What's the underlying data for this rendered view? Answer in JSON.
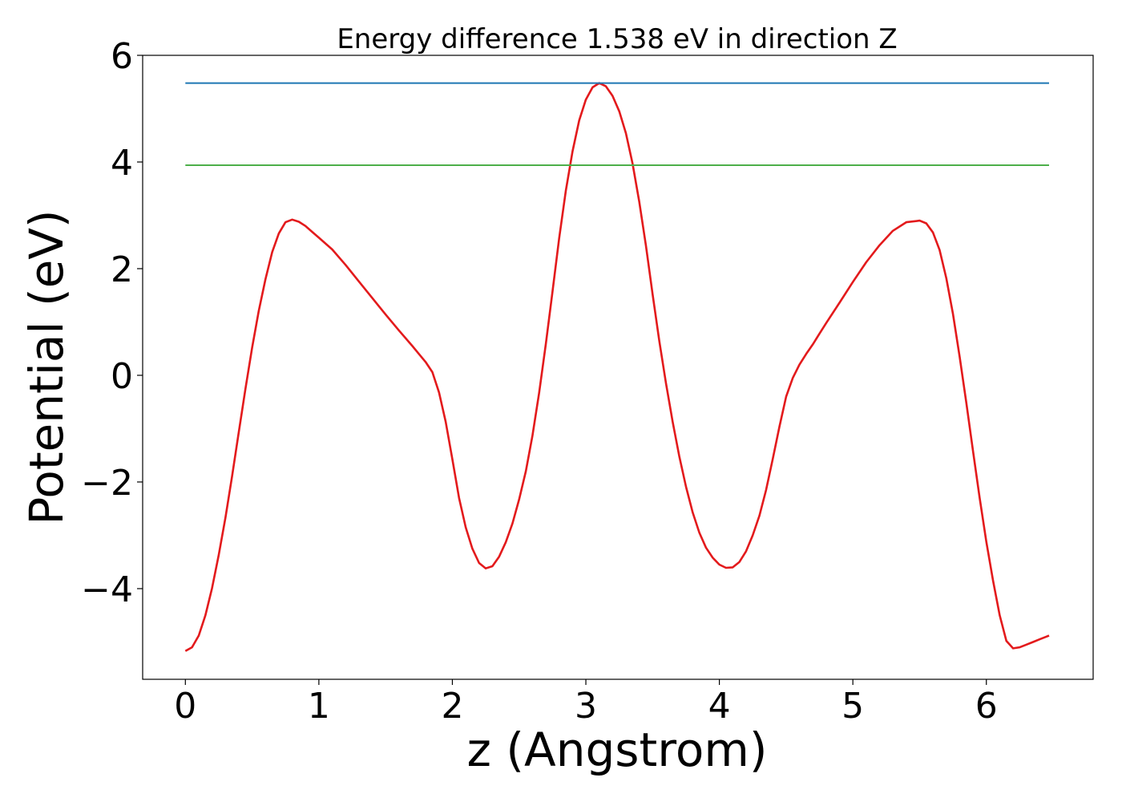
{
  "chart_data": {
    "type": "line",
    "title": "Energy difference 1.538 eV in direction Z",
    "xlabel": "z (Angstrom)",
    "ylabel": "Potential (eV)",
    "xlim": [
      -0.32,
      6.8
    ],
    "ylim": [
      -5.7,
      6.0
    ],
    "xticks": [
      0,
      1,
      2,
      3,
      4,
      5,
      6
    ],
    "yticks": [
      -4,
      -2,
      0,
      2,
      4,
      6
    ],
    "xtick_labels": [
      "0",
      "1",
      "2",
      "3",
      "4",
      "5",
      "6"
    ],
    "ytick_labels": [
      "−4",
      "−2",
      "0",
      "2",
      "4",
      "6"
    ],
    "grid": false,
    "series": [
      {
        "role": "potential-curve",
        "color": "#e31a1c",
        "x": [
          0.0,
          0.05,
          0.1,
          0.15,
          0.2,
          0.25,
          0.3,
          0.35,
          0.4,
          0.45,
          0.5,
          0.55,
          0.6,
          0.65,
          0.7,
          0.75,
          0.8,
          0.85,
          0.9,
          0.95,
          1.0,
          1.1,
          1.2,
          1.3,
          1.4,
          1.5,
          1.6,
          1.7,
          1.75,
          1.8,
          1.85,
          1.9,
          1.95,
          2.0,
          2.05,
          2.1,
          2.15,
          2.2,
          2.25,
          2.3,
          2.35,
          2.4,
          2.45,
          2.5,
          2.55,
          2.6,
          2.65,
          2.7,
          2.75,
          2.8,
          2.85,
          2.9,
          2.95,
          3.0,
          3.05,
          3.1,
          3.15,
          3.2,
          3.25,
          3.3,
          3.35,
          3.4,
          3.45,
          3.5,
          3.55,
          3.6,
          3.65,
          3.7,
          3.75,
          3.8,
          3.85,
          3.9,
          3.95,
          4.0,
          4.05,
          4.1,
          4.15,
          4.2,
          4.25,
          4.3,
          4.35,
          4.4,
          4.45,
          4.5,
          4.55,
          4.6,
          4.65,
          4.7,
          4.75,
          4.8,
          4.9,
          5.0,
          5.1,
          5.2,
          5.3,
          5.4,
          5.5,
          5.55,
          5.6,
          5.65,
          5.7,
          5.75,
          5.8,
          5.85,
          5.9,
          5.95,
          6.0,
          6.05,
          6.1,
          6.15,
          6.2,
          6.25,
          6.3,
          6.35,
          6.4,
          6.45,
          6.47
        ],
        "y": [
          -5.17,
          -5.1,
          -4.88,
          -4.5,
          -3.99,
          -3.37,
          -2.67,
          -1.89,
          -1.07,
          -0.25,
          0.52,
          1.21,
          1.8,
          2.31,
          2.66,
          2.87,
          2.92,
          2.88,
          2.8,
          2.69,
          2.58,
          2.36,
          2.07,
          1.76,
          1.45,
          1.14,
          0.84,
          0.55,
          0.4,
          0.25,
          0.06,
          -0.32,
          -0.87,
          -1.57,
          -2.3,
          -2.85,
          -3.25,
          -3.52,
          -3.62,
          -3.58,
          -3.4,
          -3.13,
          -2.78,
          -2.33,
          -1.8,
          -1.13,
          -0.33,
          0.59,
          1.57,
          2.57,
          3.46,
          4.2,
          4.78,
          5.17,
          5.4,
          5.48,
          5.42,
          5.24,
          4.95,
          4.54,
          3.97,
          3.25,
          2.43,
          1.52,
          0.65,
          -0.15,
          -0.87,
          -1.52,
          -2.09,
          -2.57,
          -2.95,
          -3.23,
          -3.42,
          -3.55,
          -3.61,
          -3.6,
          -3.5,
          -3.3,
          -3.0,
          -2.63,
          -2.15,
          -1.57,
          -0.96,
          -0.4,
          -0.05,
          0.2,
          0.4,
          0.58,
          0.78,
          0.98,
          1.36,
          1.75,
          2.12,
          2.44,
          2.71,
          2.87,
          2.9,
          2.85,
          2.68,
          2.35,
          1.82,
          1.15,
          0.35,
          -0.52,
          -1.42,
          -2.3,
          -3.12,
          -3.85,
          -4.5,
          -4.98,
          -5.12,
          -5.1,
          -5.05,
          -5.0,
          -4.95,
          -4.9,
          -4.88
        ]
      },
      {
        "role": "upper-level",
        "color": "#1f77b4",
        "x": [
          0.0,
          6.47
        ],
        "y": [
          5.48,
          5.48
        ]
      },
      {
        "role": "lower-level",
        "color": "#4daf4a",
        "x": [
          0.0,
          6.47
        ],
        "y": [
          3.94,
          3.94
        ]
      }
    ]
  }
}
